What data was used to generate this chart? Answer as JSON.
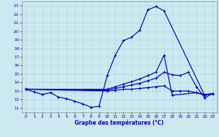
{
  "title": "Graphe des températures (°C)",
  "bg_color": "#cce8f0",
  "grid_color": "#b8d8e0",
  "line_color": "#0000cc",
  "xlim": [
    -0.5,
    23.5
  ],
  "ylim": [
    10.5,
    23.5
  ],
  "yticks": [
    11,
    12,
    13,
    14,
    15,
    16,
    17,
    18,
    19,
    20,
    21,
    22,
    23
  ],
  "xticks": [
    0,
    1,
    2,
    3,
    4,
    5,
    6,
    7,
    8,
    9,
    10,
    11,
    12,
    13,
    14,
    15,
    16,
    17,
    18,
    19,
    20,
    21,
    22,
    23
  ],
  "curve1_x": [
    0,
    1,
    2,
    3,
    4,
    5,
    6,
    7,
    8,
    9,
    10,
    11,
    12,
    13,
    14,
    15,
    16,
    17,
    22,
    23
  ],
  "curve1_y": [
    13.2,
    12.9,
    12.6,
    12.8,
    12.3,
    12.1,
    11.8,
    11.5,
    11.1,
    11.2,
    14.8,
    17.2,
    18.9,
    19.3,
    20.1,
    22.5,
    22.9,
    22.4,
    12.5,
    12.7
  ],
  "curve2_x": [
    0,
    10,
    11,
    12,
    13,
    14,
    15,
    16,
    17,
    18,
    21,
    22,
    23
  ],
  "curve2_y": [
    13.2,
    13.2,
    13.5,
    13.8,
    14.1,
    14.4,
    14.8,
    15.2,
    17.2,
    12.5,
    12.8,
    12.5,
    12.7
  ],
  "curve3_x": [
    0,
    10,
    11,
    12,
    13,
    14,
    15,
    16,
    17,
    18,
    19,
    20,
    21,
    22,
    23
  ],
  "curve3_y": [
    13.2,
    13.1,
    13.3,
    13.5,
    13.7,
    13.9,
    14.2,
    14.5,
    15.2,
    14.9,
    14.8,
    15.2,
    13.5,
    12.2,
    12.7
  ],
  "curve4_x": [
    0,
    10,
    11,
    12,
    13,
    14,
    15,
    16,
    17,
    18,
    19,
    20,
    21,
    22,
    23
  ],
  "curve4_y": [
    13.2,
    13.0,
    13.1,
    13.2,
    13.2,
    13.3,
    13.4,
    13.5,
    13.6,
    13.0,
    13.0,
    13.0,
    12.8,
    12.6,
    12.7
  ]
}
